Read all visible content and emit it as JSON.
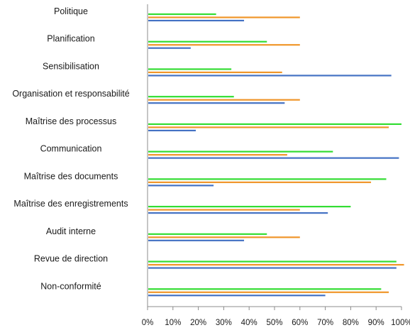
{
  "chart_data": {
    "type": "bar",
    "orientation": "horizontal",
    "categories": [
      "Politique",
      "Planification",
      "Sensibilisation",
      "Organisation et responsabilité",
      "Maîtrise des processus",
      "Communication",
      "Maîtrise des documents",
      "Maîtrise des enregistrements",
      "Audit interne",
      "Revue de direction",
      "Non-conformité"
    ],
    "series": [
      {
        "values": [
          27,
          47,
          33,
          34,
          100,
          73,
          94,
          80,
          47,
          98,
          92
        ],
        "color": "#33dd33"
      },
      {
        "values": [
          60,
          60,
          53,
          60,
          95,
          55,
          88,
          60,
          60,
          101,
          95
        ],
        "color": "#f0962a"
      },
      {
        "values": [
          38,
          17,
          96,
          54,
          19,
          99,
          26,
          71,
          38,
          98,
          70
        ],
        "color": "#4472c4"
      }
    ],
    "xlim": [
      0,
      100
    ],
    "xticks": [
      "0%",
      "10%",
      "20%",
      "30%",
      "40%",
      "50%",
      "60%",
      "70%",
      "80%",
      "90%",
      "100%"
    ],
    "legend": "none",
    "grid": false,
    "title": "",
    "xlabel": "",
    "ylabel": ""
  }
}
